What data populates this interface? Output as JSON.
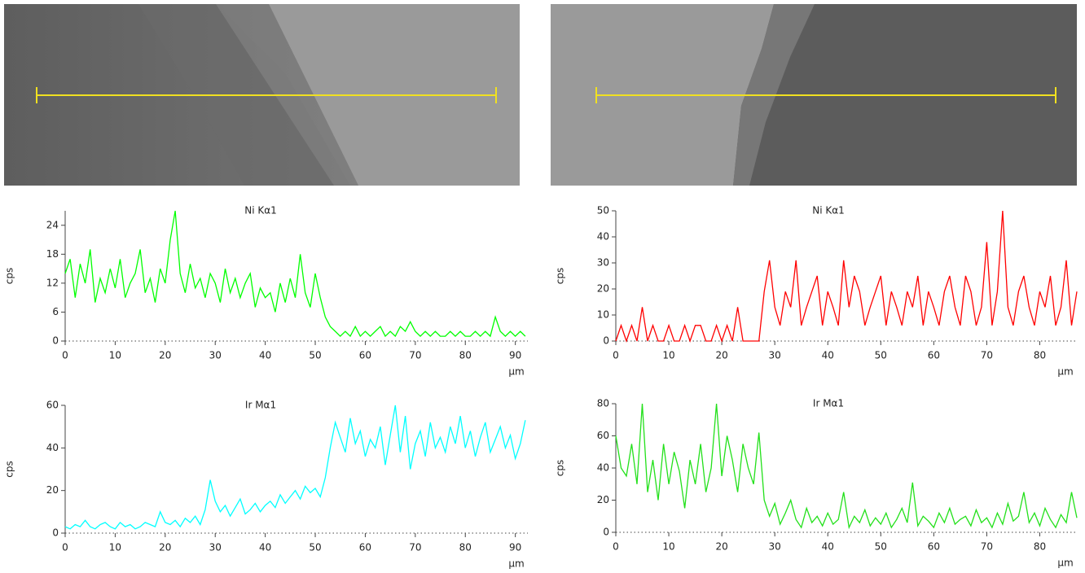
{
  "chart_data": [
    {
      "type": "line",
      "title": "Ni Kα1",
      "y_label": "cps",
      "x_label": "µm",
      "color": "#00ff00",
      "x": [
        0,
        1,
        2,
        3,
        4,
        5,
        6,
        7,
        8,
        9,
        10,
        11,
        12,
        13,
        14,
        15,
        16,
        17,
        18,
        19,
        20,
        21,
        22,
        23,
        24,
        25,
        26,
        27,
        28,
        29,
        30,
        31,
        32,
        33,
        34,
        35,
        36,
        37,
        38,
        39,
        40,
        41,
        42,
        43,
        44,
        45,
        46,
        47,
        48,
        49,
        50,
        51,
        52,
        53,
        54,
        55,
        56,
        57,
        58,
        59,
        60,
        61,
        62,
        63,
        64,
        65,
        66,
        67,
        68,
        69,
        70,
        71,
        72,
        73,
        74,
        75,
        76,
        77,
        78,
        79,
        80,
        81,
        82,
        83,
        84,
        85,
        86,
        87,
        88,
        89,
        90,
        91,
        92
      ],
      "values": [
        14,
        17,
        9,
        16,
        12,
        19,
        8,
        13,
        10,
        15,
        11,
        17,
        9,
        12,
        14,
        19,
        10,
        13,
        8,
        15,
        12,
        21,
        27,
        14,
        10,
        16,
        11,
        13,
        9,
        14,
        12,
        8,
        15,
        10,
        13,
        9,
        12,
        14,
        7,
        11,
        9,
        10,
        6,
        12,
        8,
        13,
        9,
        18,
        10,
        7,
        14,
        9,
        5,
        3,
        2,
        1,
        2,
        1,
        3,
        1,
        2,
        1,
        2,
        3,
        1,
        2,
        1,
        3,
        2,
        4,
        2,
        1,
        2,
        1,
        2,
        1,
        1,
        2,
        1,
        2,
        1,
        1,
        2,
        1,
        2,
        1,
        5,
        2,
        1,
        2,
        1,
        2,
        1
      ],
      "xlim": [
        0,
        92.5
      ],
      "ylim": [
        0,
        27
      ],
      "xticks": [
        0,
        10,
        20,
        30,
        40,
        50,
        60,
        70,
        80,
        90
      ],
      "yticks": [
        0,
        6,
        12,
        18,
        24
      ]
    },
    {
      "type": "line",
      "title": "Ir Mα1",
      "y_label": "cps",
      "x_label": "µm",
      "color": "#00ffff",
      "x": [
        0,
        1,
        2,
        3,
        4,
        5,
        6,
        7,
        8,
        9,
        10,
        11,
        12,
        13,
        14,
        15,
        16,
        17,
        18,
        19,
        20,
        21,
        22,
        23,
        24,
        25,
        26,
        27,
        28,
        29,
        30,
        31,
        32,
        33,
        34,
        35,
        36,
        37,
        38,
        39,
        40,
        41,
        42,
        43,
        44,
        45,
        46,
        47,
        48,
        49,
        50,
        51,
        52,
        53,
        54,
        55,
        56,
        57,
        58,
        59,
        60,
        61,
        62,
        63,
        64,
        65,
        66,
        67,
        68,
        69,
        70,
        71,
        72,
        73,
        74,
        75,
        76,
        77,
        78,
        79,
        80,
        81,
        82,
        83,
        84,
        85,
        86,
        87,
        88,
        89,
        90,
        91,
        92
      ],
      "values": [
        3,
        2,
        4,
        3,
        6,
        3,
        2,
        4,
        5,
        3,
        2,
        5,
        3,
        4,
        2,
        3,
        5,
        4,
        3,
        10,
        5,
        4,
        6,
        3,
        7,
        5,
        8,
        4,
        11,
        25,
        15,
        10,
        13,
        8,
        12,
        16,
        9,
        11,
        14,
        10,
        13,
        15,
        12,
        18,
        14,
        17,
        20,
        16,
        22,
        19,
        21,
        17,
        26,
        40,
        52,
        45,
        38,
        54,
        42,
        48,
        36,
        44,
        40,
        50,
        32,
        46,
        60,
        38,
        55,
        30,
        42,
        48,
        36,
        52,
        40,
        45,
        38,
        50,
        42,
        55,
        40,
        48,
        36,
        45,
        52,
        38,
        44,
        50,
        40,
        46,
        35,
        42,
        53
      ],
      "xlim": [
        0,
        92.5
      ],
      "ylim": [
        0,
        60
      ],
      "xticks": [
        0,
        10,
        20,
        30,
        40,
        50,
        60,
        70,
        80,
        90
      ],
      "yticks": [
        0,
        20,
        40,
        60
      ]
    },
    {
      "type": "line",
      "title": "Ni Kα1",
      "y_label": "cps",
      "x_label": "µm",
      "color": "#ff0000",
      "x": [
        0,
        1,
        2,
        3,
        4,
        5,
        6,
        7,
        8,
        9,
        10,
        11,
        12,
        13,
        14,
        15,
        16,
        17,
        18,
        19,
        20,
        21,
        22,
        23,
        24,
        25,
        26,
        27,
        28,
        29,
        30,
        31,
        32,
        33,
        34,
        35,
        36,
        37,
        38,
        39,
        40,
        41,
        42,
        43,
        44,
        45,
        46,
        47,
        48,
        49,
        50,
        51,
        52,
        53,
        54,
        55,
        56,
        57,
        58,
        59,
        60,
        61,
        62,
        63,
        64,
        65,
        66,
        67,
        68,
        69,
        70,
        71,
        72,
        73,
        74,
        75,
        76,
        77,
        78,
        79,
        80,
        81,
        82,
        83,
        84,
        85,
        86,
        87
      ],
      "values": [
        0,
        6,
        0,
        6,
        0,
        13,
        0,
        6,
        0,
        0,
        6,
        0,
        0,
        6,
        0,
        6,
        6,
        0,
        0,
        6,
        0,
        6,
        0,
        13,
        0,
        0,
        0,
        0,
        19,
        31,
        13,
        6,
        19,
        13,
        31,
        6,
        13,
        19,
        25,
        6,
        19,
        13,
        6,
        31,
        13,
        25,
        19,
        6,
        13,
        19,
        25,
        6,
        19,
        13,
        6,
        19,
        13,
        25,
        6,
        19,
        13,
        6,
        19,
        25,
        13,
        6,
        25,
        19,
        6,
        13,
        38,
        6,
        19,
        50,
        13,
        6,
        19,
        25,
        13,
        6,
        19,
        13,
        25,
        6,
        13,
        31,
        6,
        19
      ],
      "xlim": [
        0,
        87
      ],
      "ylim": [
        0,
        50
      ],
      "xticks": [
        0,
        10,
        20,
        30,
        40,
        50,
        60,
        70,
        80
      ],
      "yticks": [
        0,
        10,
        20,
        30,
        40,
        50
      ]
    },
    {
      "type": "line",
      "title": "Ir Mα1",
      "y_label": "cps",
      "x_label": "µm",
      "color": "#22e01a",
      "x": [
        0,
        1,
        2,
        3,
        4,
        5,
        6,
        7,
        8,
        9,
        10,
        11,
        12,
        13,
        14,
        15,
        16,
        17,
        18,
        19,
        20,
        21,
        22,
        23,
        24,
        25,
        26,
        27,
        28,
        29,
        30,
        31,
        32,
        33,
        34,
        35,
        36,
        37,
        38,
        39,
        40,
        41,
        42,
        43,
        44,
        45,
        46,
        47,
        48,
        49,
        50,
        51,
        52,
        53,
        54,
        55,
        56,
        57,
        58,
        59,
        60,
        61,
        62,
        63,
        64,
        65,
        66,
        67,
        68,
        69,
        70,
        71,
        72,
        73,
        74,
        75,
        76,
        77,
        78,
        79,
        80,
        81,
        82,
        83,
        84,
        85,
        86,
        87
      ],
      "values": [
        60,
        40,
        35,
        55,
        30,
        80,
        25,
        45,
        20,
        55,
        30,
        50,
        38,
        15,
        45,
        30,
        55,
        25,
        40,
        80,
        35,
        60,
        45,
        25,
        55,
        40,
        30,
        62,
        20,
        10,
        18,
        5,
        12,
        20,
        8,
        3,
        15,
        6,
        10,
        4,
        12,
        5,
        8,
        25,
        3,
        10,
        6,
        14,
        4,
        9,
        5,
        12,
        3,
        8,
        15,
        6,
        31,
        4,
        10,
        7,
        3,
        12,
        6,
        15,
        5,
        8,
        10,
        4,
        14,
        6,
        9,
        3,
        12,
        5,
        18,
        7,
        10,
        25,
        6,
        12,
        4,
        15,
        8,
        3,
        11,
        6,
        25,
        9
      ],
      "xlim": [
        0,
        87
      ],
      "ylim": [
        0,
        80
      ],
      "xticks": [
        0,
        10,
        20,
        30,
        40,
        50,
        60,
        70,
        80
      ],
      "yticks": [
        0,
        20,
        40,
        60,
        80
      ]
    }
  ]
}
